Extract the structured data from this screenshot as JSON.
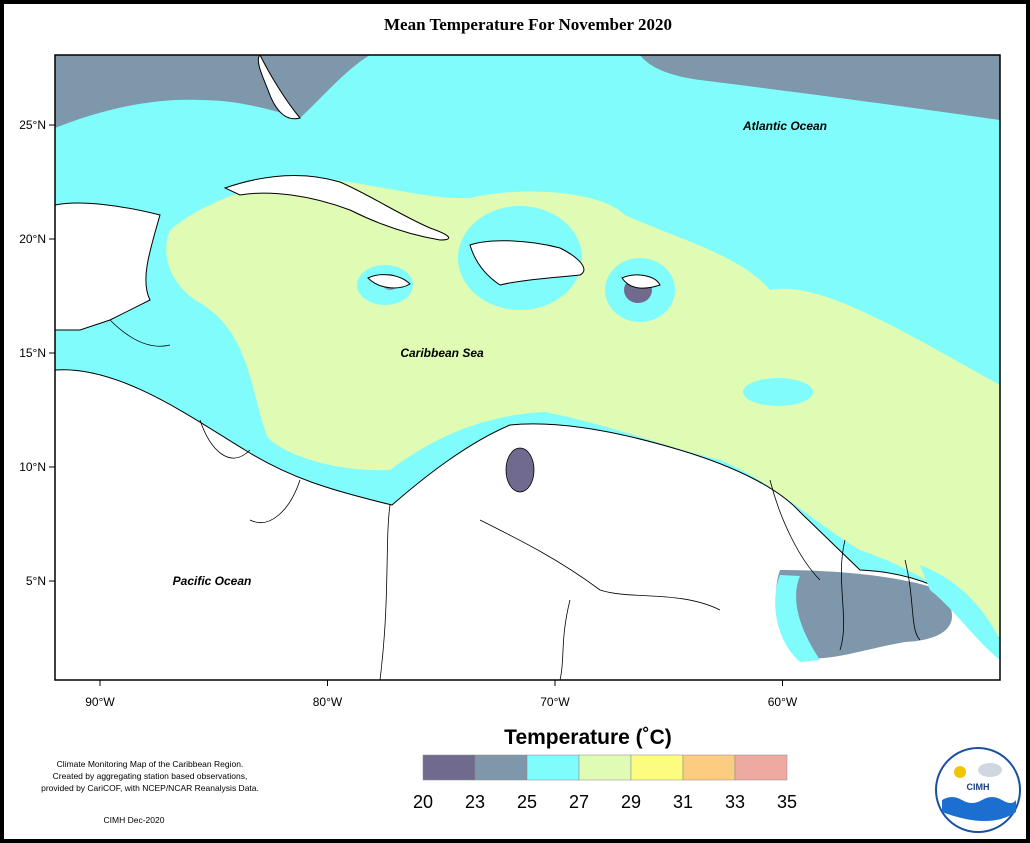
{
  "title": "Mean Temperature For November 2020",
  "map": {
    "lon_ticks": [
      {
        "value": -90,
        "label": "90°W"
      },
      {
        "value": -80,
        "label": "80°W"
      },
      {
        "value": -70,
        "label": "70°W"
      },
      {
        "value": -60,
        "label": "60°W"
      }
    ],
    "lat_ticks": [
      {
        "value": 25,
        "label": "25°N"
      },
      {
        "value": 20,
        "label": "20°N"
      },
      {
        "value": 15,
        "label": "15°N"
      },
      {
        "value": 10,
        "label": "10°N"
      },
      {
        "value": 5,
        "label": "5°N"
      }
    ],
    "labels": [
      "Atlantic Ocean",
      "Caribbean Sea",
      "Pacific Ocean"
    ]
  },
  "legend": {
    "title": "Temperature (˚C)",
    "bins": [
      20,
      23,
      25,
      27,
      29,
      31,
      33,
      35
    ],
    "colors": [
      "#6f6a8e",
      "#7f97ab",
      "#80fcfc",
      "#e0fcb4",
      "#fcfc80",
      "#fccc80",
      "#eeaaa0"
    ]
  },
  "footnote": {
    "lines": [
      "Climate Monitoring Map of the Caribbean Region.",
      "Created by aggregating station based observations,",
      "provided by CariCOF, with NCEP/NCAR Reanalysis Data."
    ],
    "credit": "CIMH Dec-2020"
  },
  "logo": {
    "text": "CIMH"
  }
}
